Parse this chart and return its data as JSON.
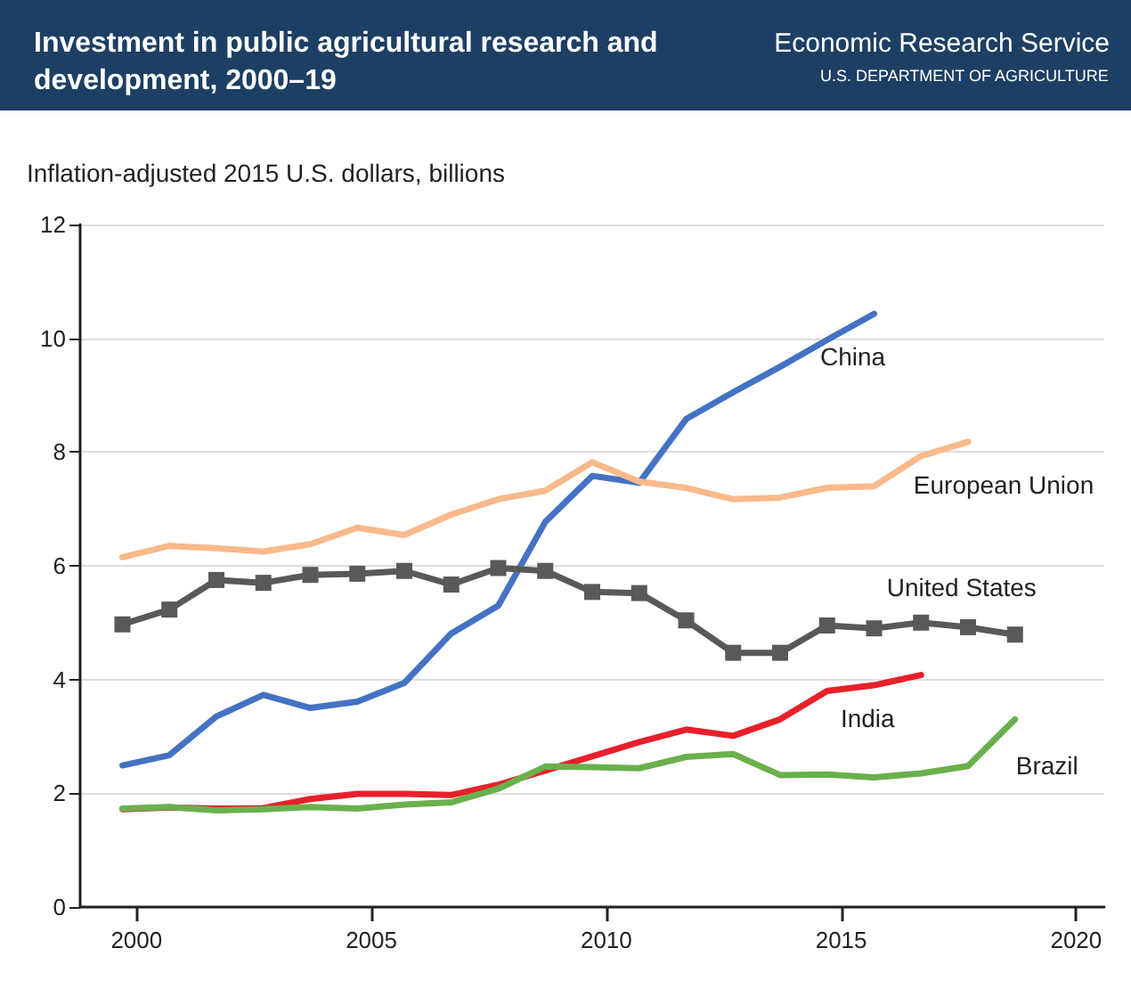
{
  "chart_data": {
    "type": "line",
    "title": "Investment in public agricultural research and development, 2000–19",
    "ylabel": "Inflation-adjusted 2015 U.S. dollars, billions",
    "annotations": [
      "Economic Research Service",
      "U.S. DEPARTMENT OF AGRICULTURE"
    ],
    "x": [
      1999.7,
      2000.7,
      2001.7,
      2002.7,
      2003.7,
      2004.7,
      2005.7,
      2006.7,
      2007.7,
      2008.7,
      2009.7,
      2010.7,
      2011.7,
      2012.7,
      2013.7,
      2014.7,
      2015.7,
      2016.7,
      2017.7,
      2018.7
    ],
    "series": [
      {
        "name": "China",
        "color": "#4472c4",
        "marker": "none",
        "values": [
          2.49,
          2.67,
          3.35,
          3.73,
          3.5,
          3.61,
          3.94,
          4.81,
          5.3,
          6.77,
          7.58,
          7.46,
          8.58,
          9.05,
          9.5,
          9.97,
          10.43,
          null,
          null,
          null
        ]
      },
      {
        "name": "European Union",
        "color": "#f9b98a",
        "marker": "none",
        "values": [
          6.15,
          6.35,
          6.31,
          6.25,
          6.38,
          6.67,
          6.54,
          6.9,
          7.17,
          7.32,
          7.82,
          7.48,
          7.37,
          7.17,
          7.2,
          7.37,
          7.4,
          7.93,
          8.18,
          null
        ]
      },
      {
        "name": "United States",
        "color": "#595959",
        "marker": "square",
        "values": [
          4.97,
          5.23,
          5.75,
          5.7,
          5.84,
          5.86,
          5.91,
          5.67,
          5.96,
          5.91,
          5.54,
          5.52,
          5.04,
          4.47,
          4.47,
          4.95,
          4.9,
          5.0,
          4.92,
          4.79
        ]
      },
      {
        "name": "India",
        "color": "#e8202a",
        "marker": "none",
        "values": [
          1.72,
          1.75,
          1.73,
          1.74,
          1.9,
          1.99,
          1.99,
          1.97,
          2.15,
          2.4,
          2.65,
          2.9,
          3.12,
          3.01,
          3.3,
          3.8,
          3.9,
          4.08,
          null,
          null
        ]
      },
      {
        "name": "Brazil",
        "color": "#6ab04c",
        "marker": "none",
        "values": [
          1.73,
          1.76,
          1.7,
          1.72,
          1.76,
          1.73,
          1.8,
          1.84,
          2.08,
          2.47,
          2.46,
          2.44,
          2.64,
          2.69,
          2.32,
          2.33,
          2.28,
          2.35,
          2.48,
          3.3
        ]
      }
    ],
    "xlim": [
      1998.8,
      2020.6
    ],
    "xticks": [
      2000,
      2005,
      2010,
      2015,
      2020
    ],
    "ylim": [
      0,
      12
    ],
    "yticks": [
      0,
      2,
      4,
      6,
      8,
      10,
      12
    ],
    "grid": "y",
    "legend": false,
    "line_style": "solid"
  }
}
